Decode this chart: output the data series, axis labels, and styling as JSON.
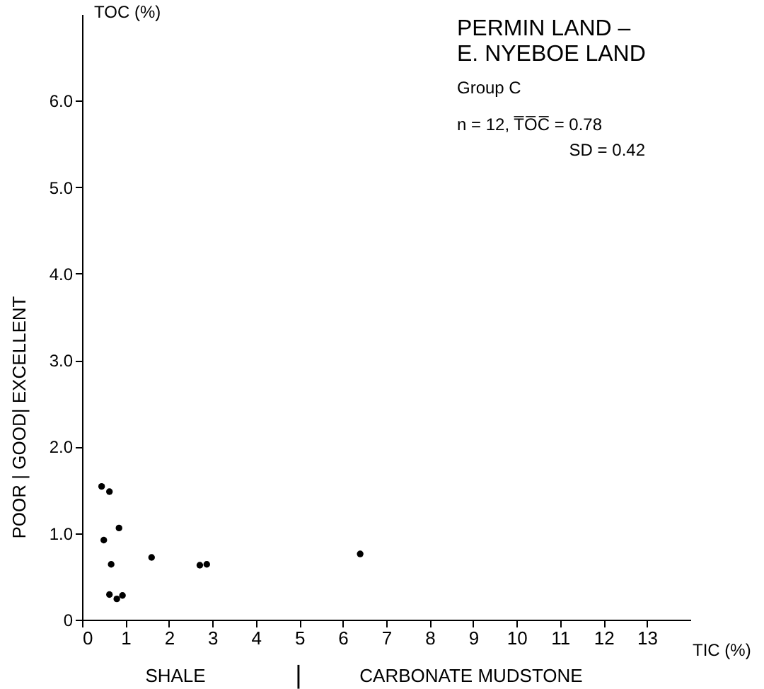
{
  "chart_data": {
    "type": "scatter",
    "title": "PERMIN LAND –\nE. NYEBOE LAND",
    "subtitle": "Group C",
    "xlabel": "TIC (%)",
    "ylabel": "TOC (%)",
    "annotations": [
      "n = 12, T̅O̅C̅ = 0.78",
      "SD = 0.42",
      "POOR | GOOD| EXCELLENT",
      "SHALE",
      "|",
      "CARBONATE MUDSTONE"
    ],
    "x": [
      0.45,
      0.63,
      0.5,
      0.85,
      0.67,
      0.63,
      0.8,
      0.93,
      1.6,
      2.71,
      2.87,
      6.4
    ],
    "series": [
      {
        "color": "#000000",
        "values": [
          1.54,
          1.48,
          0.92,
          1.06,
          0.64,
          0.29,
          0.24,
          0.28,
          0.72,
          0.63,
          0.64,
          0.76
        ]
      }
    ],
    "xlim": [
      0,
      14
    ],
    "ylim": [
      0,
      7
    ],
    "xticks": [
      0,
      1,
      2,
      3,
      4,
      5,
      6,
      7,
      8,
      9,
      10,
      11,
      12,
      13
    ],
    "yticks": [
      0,
      {
        "value": 1,
        "label": "1.0"
      },
      {
        "value": 2,
        "label": "2.0"
      },
      {
        "value": 3,
        "label": "3.0"
      },
      {
        "value": 4,
        "label": "4.0"
      },
      {
        "value": 5,
        "label": "5.0"
      },
      {
        "value": 6,
        "label": "6.0"
      }
    ],
    "grid": false,
    "marker": "circle"
  }
}
